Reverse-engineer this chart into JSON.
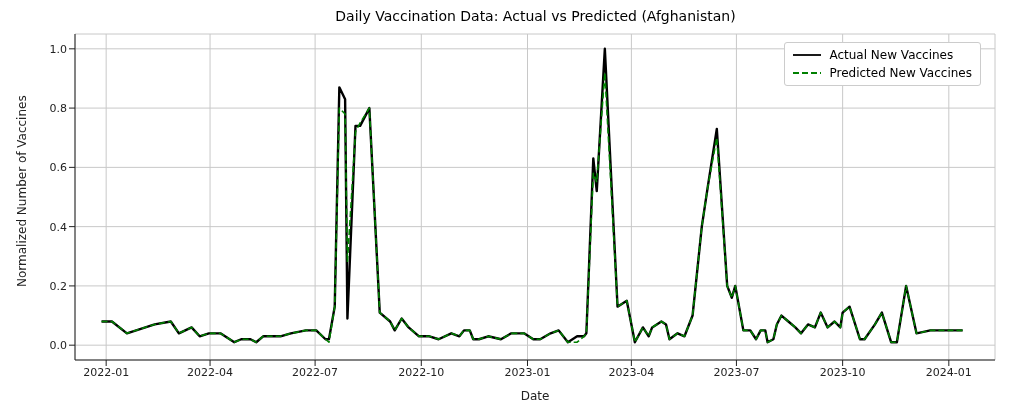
{
  "chart_data": {
    "type": "line",
    "title": "Daily Vaccination Data: Actual vs Predicted (Afghanistan)",
    "xlabel": "Date",
    "ylabel": "Normalized Number of Vaccines",
    "x": [
      "2021-12-28",
      "2022-01-06",
      "2022-01-19",
      "2022-02-12",
      "2022-02-26",
      "2022-03-05",
      "2022-03-16",
      "2022-03-23",
      "2022-03-31",
      "2022-04-10",
      "2022-04-22",
      "2022-04-28",
      "2022-05-06",
      "2022-05-11",
      "2022-05-17",
      "2022-06-01",
      "2022-06-10",
      "2022-06-23",
      "2022-07-02",
      "2022-07-10",
      "2022-07-13",
      "2022-07-18",
      "2022-07-22",
      "2022-07-27",
      "2022-07-29",
      "2022-08-05",
      "2022-08-09",
      "2022-08-17",
      "2022-08-26",
      "2022-09-04",
      "2022-09-08",
      "2022-09-14",
      "2022-09-20",
      "2022-09-29",
      "2022-10-08",
      "2022-10-16",
      "2022-10-27",
      "2022-11-03",
      "2022-11-07",
      "2022-11-12",
      "2022-11-15",
      "2022-11-20",
      "2022-11-28",
      "2022-12-09",
      "2022-12-18",
      "2022-12-29",
      "2023-01-06",
      "2023-01-12",
      "2023-01-21",
      "2023-01-28",
      "2023-02-05",
      "2023-02-13",
      "2023-02-19",
      "2023-02-21",
      "2023-02-27",
      "2023-03-02",
      "2023-03-09",
      "2023-03-20",
      "2023-03-28",
      "2023-04-04",
      "2023-04-11",
      "2023-04-16",
      "2023-04-19",
      "2023-04-27",
      "2023-05-01",
      "2023-05-04",
      "2023-05-11",
      "2023-05-17",
      "2023-05-24",
      "2023-06-01",
      "2023-06-06",
      "2023-06-14",
      "2023-06-23",
      "2023-06-27",
      "2023-06-30",
      "2023-07-07",
      "2023-07-13",
      "2023-07-18",
      "2023-07-22",
      "2023-07-26",
      "2023-07-28",
      "2023-08-02",
      "2023-08-05",
      "2023-08-09",
      "2023-08-15",
      "2023-08-21",
      "2023-08-26",
      "2023-09-01",
      "2023-09-07",
      "2023-09-12",
      "2023-09-18",
      "2023-09-24",
      "2023-09-29",
      "2023-10-01",
      "2023-10-07",
      "2023-10-16",
      "2023-10-20",
      "2023-10-29",
      "2023-11-04",
      "2023-11-12",
      "2023-11-17",
      "2023-11-25",
      "2023-12-04",
      "2023-12-16",
      "2024-01-13"
    ],
    "series": [
      {
        "name": "Actual New Vaccines",
        "color": "#000000",
        "line_style": "solid",
        "values": [
          0.08,
          0.08,
          0.04,
          0.07,
          0.08,
          0.04,
          0.06,
          0.03,
          0.04,
          0.04,
          0.01,
          0.02,
          0.02,
          0.01,
          0.03,
          0.03,
          0.04,
          0.05,
          0.05,
          0.02,
          0.02,
          0.13,
          0.87,
          0.83,
          0.09,
          0.74,
          0.74,
          0.8,
          0.11,
          0.08,
          0.05,
          0.09,
          0.06,
          0.03,
          0.03,
          0.02,
          0.04,
          0.03,
          0.05,
          0.05,
          0.02,
          0.02,
          0.03,
          0.02,
          0.04,
          0.04,
          0.02,
          0.02,
          0.04,
          0.05,
          0.01,
          0.03,
          0.03,
          0.04,
          0.63,
          0.52,
          1.0,
          0.13,
          0.15,
          0.01,
          0.06,
          0.03,
          0.06,
          0.08,
          0.07,
          0.02,
          0.04,
          0.03,
          0.1,
          0.4,
          0.53,
          0.73,
          0.2,
          0.16,
          0.2,
          0.05,
          0.05,
          0.02,
          0.05,
          0.05,
          0.01,
          0.02,
          0.07,
          0.1,
          0.08,
          0.06,
          0.04,
          0.07,
          0.06,
          0.11,
          0.06,
          0.08,
          0.06,
          0.11,
          0.13,
          0.02,
          0.02,
          0.07,
          0.11,
          0.01,
          0.01,
          0.2,
          0.04,
          0.05,
          0.05
        ]
      },
      {
        "name": "Predicted New Vaccines",
        "color": "#008000",
        "line_style": "dashed",
        "values": [
          0.08,
          0.08,
          0.04,
          0.07,
          0.08,
          0.04,
          0.06,
          0.03,
          0.04,
          0.04,
          0.01,
          0.02,
          0.02,
          0.01,
          0.03,
          0.03,
          0.04,
          0.05,
          0.05,
          0.02,
          0.01,
          0.13,
          0.8,
          0.78,
          0.28,
          0.72,
          0.75,
          0.8,
          0.11,
          0.08,
          0.05,
          0.09,
          0.06,
          0.03,
          0.03,
          0.02,
          0.04,
          0.03,
          0.05,
          0.05,
          0.02,
          0.02,
          0.03,
          0.02,
          0.04,
          0.04,
          0.02,
          0.02,
          0.04,
          0.05,
          0.01,
          0.01,
          0.03,
          0.04,
          0.58,
          0.55,
          0.92,
          0.13,
          0.15,
          0.01,
          0.06,
          0.03,
          0.06,
          0.08,
          0.07,
          0.02,
          0.04,
          0.03,
          0.1,
          0.4,
          0.53,
          0.7,
          0.2,
          0.16,
          0.2,
          0.05,
          0.05,
          0.02,
          0.05,
          0.05,
          0.01,
          0.02,
          0.07,
          0.1,
          0.08,
          0.06,
          0.04,
          0.07,
          0.06,
          0.11,
          0.06,
          0.08,
          0.06,
          0.11,
          0.13,
          0.02,
          0.02,
          0.07,
          0.11,
          0.01,
          0.01,
          0.2,
          0.04,
          0.05,
          0.05
        ]
      }
    ],
    "xlim": [
      "2021-12-05",
      "2024-02-10"
    ],
    "xticks": [
      "2022-01",
      "2022-04",
      "2022-07",
      "2022-10",
      "2023-01",
      "2023-04",
      "2023-07",
      "2023-10",
      "2024-01"
    ],
    "ylim": [
      -0.05,
      1.05
    ],
    "yticks": [
      {
        "value": 0,
        "label": "0.0"
      },
      {
        "value": 0.2,
        "label": "0.2"
      },
      {
        "value": 0.4,
        "label": "0.4"
      },
      {
        "value": 0.6,
        "label": "0.6"
      },
      {
        "value": 0.8,
        "label": "0.8"
      },
      {
        "value": 1,
        "label": "1.0"
      }
    ],
    "grid": true,
    "legend": "top right",
    "marker": "none"
  }
}
